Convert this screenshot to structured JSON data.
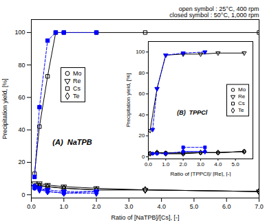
{
  "chart_data": [
    {
      "type": "line",
      "title": "(A)  NaTPB",
      "annotation": "open symbol : 25°C, 400 rpm\nclosed symbol : 50°C, 1,000 rpm",
      "xlabel": "Ratio of [NaTPB]/[Cs], [-]",
      "ylabel": "Precipitation yield, [%]",
      "xlim": [
        0,
        7
      ],
      "ylim": [
        -2,
        108
      ],
      "xticks": [
        0,
        1,
        2,
        3,
        4,
        5,
        6,
        7
      ],
      "yticks": [
        0,
        20,
        40,
        60,
        80,
        100
      ],
      "legend": "upper left",
      "series": [
        {
          "name": "Mo",
          "color": "#000000",
          "marker": "open circle",
          "line_style": "solid",
          "x": [
            0.1,
            0.25,
            0.5,
            1.0,
            2.0,
            3.5,
            7.0
          ],
          "values": [
            5,
            6,
            5,
            4,
            3,
            3,
            2
          ]
        },
        {
          "name": "Re",
          "color": "#000000",
          "marker": "open triangle-down",
          "line_style": "solid",
          "x": [
            0.1,
            0.25,
            0.5,
            1.0,
            2.0,
            3.5,
            7.0
          ],
          "values": [
            7,
            7,
            6,
            5,
            4,
            3,
            2
          ]
        },
        {
          "name": "Cs",
          "color": "#000000",
          "marker": "open square",
          "line_style": "solid",
          "x": [
            0.1,
            0.25,
            0.5,
            0.75,
            1.0,
            2.0,
            3.5,
            7.0
          ],
          "values": [
            13,
            42,
            73,
            100,
            100,
            100,
            100,
            100
          ]
        },
        {
          "name": "Te",
          "color": "#000000",
          "marker": "open diamond",
          "line_style": "solid",
          "x": [
            0.1,
            0.25,
            0.5,
            1.0,
            2.0,
            3.5,
            7.0
          ],
          "values": [
            5,
            5,
            5,
            4,
            3,
            3,
            2
          ]
        },
        {
          "name": "Mo",
          "color": "#0000FF",
          "marker": "circle",
          "line_style": "dashed",
          "x": [
            0.1,
            0.25,
            0.5,
            1.0,
            2.0
          ],
          "values": [
            4,
            4,
            2,
            1,
            2
          ]
        },
        {
          "name": "Re",
          "color": "#0000FF",
          "marker": "triangle-down",
          "line_style": "dashed",
          "x": [
            0.1,
            0.25,
            0.5,
            1.0,
            2.0
          ],
          "values": [
            5,
            4,
            3,
            2,
            2
          ]
        },
        {
          "name": "Cs",
          "color": "#0000FF",
          "marker": "square",
          "line_style": "dashed",
          "x": [
            0.1,
            0.25,
            0.5,
            0.75,
            1.0,
            2.0
          ],
          "values": [
            11,
            54,
            95,
            100,
            100,
            100
          ]
        },
        {
          "name": "Te",
          "color": "#0000FF",
          "marker": "diamond",
          "line_style": "dashed",
          "x": [
            0.1,
            0.25,
            0.5,
            1.0,
            2.0
          ],
          "values": [
            5,
            3,
            2,
            1,
            1
          ]
        }
      ]
    },
    {
      "type": "line",
      "title": "(B)  TPPCl",
      "xlabel": "Ratio of [TPPCl]/ [Re], [-]",
      "ylabel": "Precipitation yield, [%]",
      "xlim": [
        0,
        6
      ],
      "ylim": [
        -2,
        110
      ],
      "xticks": [
        0,
        1,
        2,
        3,
        4,
        5
      ],
      "yticks": [
        0,
        20,
        40,
        60,
        80,
        100
      ],
      "legend": "right",
      "series": [
        {
          "name": "Mo",
          "color": "#000000",
          "marker": "open circle",
          "line_style": "solid",
          "x": [
            0.1,
            0.5,
            1.0,
            2.0,
            3.0,
            4.0,
            5.5
          ],
          "values": [
            3,
            4,
            4,
            4,
            4,
            4,
            5
          ]
        },
        {
          "name": "Re",
          "color": "#000000",
          "marker": "open triangle-down",
          "line_style": "solid",
          "x": [
            0.1,
            0.5,
            1.0,
            2.0,
            3.0,
            4.0,
            5.5
          ],
          "values": [
            25,
            65,
            97,
            98,
            98,
            99,
            99
          ]
        },
        {
          "name": "Cs",
          "color": "#000000",
          "marker": "open square",
          "line_style": "solid",
          "x": [
            0.1,
            0.5,
            1.0,
            2.0,
            3.0,
            4.0,
            5.5
          ],
          "values": [
            3,
            4,
            3,
            3,
            4,
            4,
            5
          ]
        },
        {
          "name": "Te",
          "color": "#000000",
          "marker": "open diamond",
          "line_style": "solid",
          "x": [
            0.1,
            0.5,
            1.0,
            2.0,
            3.0,
            4.0,
            5.5
          ],
          "values": [
            3,
            4,
            3,
            3,
            4,
            4,
            5
          ]
        },
        {
          "name": "Re",
          "color": "#0000FF",
          "marker": "triangle-down",
          "line_style": "dashed",
          "x": [
            0.25,
            0.5,
            1.0,
            2.0,
            3.25
          ],
          "values": [
            26,
            65,
            97,
            99,
            100
          ]
        },
        {
          "name": "Mo",
          "color": "#0000FF",
          "marker": "circle",
          "line_style": "dashed",
          "x": [
            0.25,
            0.5,
            1.0,
            2.0,
            3.25
          ],
          "values": [
            3,
            3,
            3,
            5,
            5
          ]
        },
        {
          "name": "Cs",
          "color": "#0000FF",
          "marker": "square",
          "line_style": "dashed",
          "x": [
            2.0,
            3.25
          ],
          "values": [
            9,
            9
          ]
        },
        {
          "name": "Te",
          "color": "#0000FF",
          "marker": "diamond",
          "line_style": "dashed",
          "x": [
            2.0,
            3.25
          ],
          "values": [
            5,
            5
          ]
        }
      ]
    }
  ]
}
